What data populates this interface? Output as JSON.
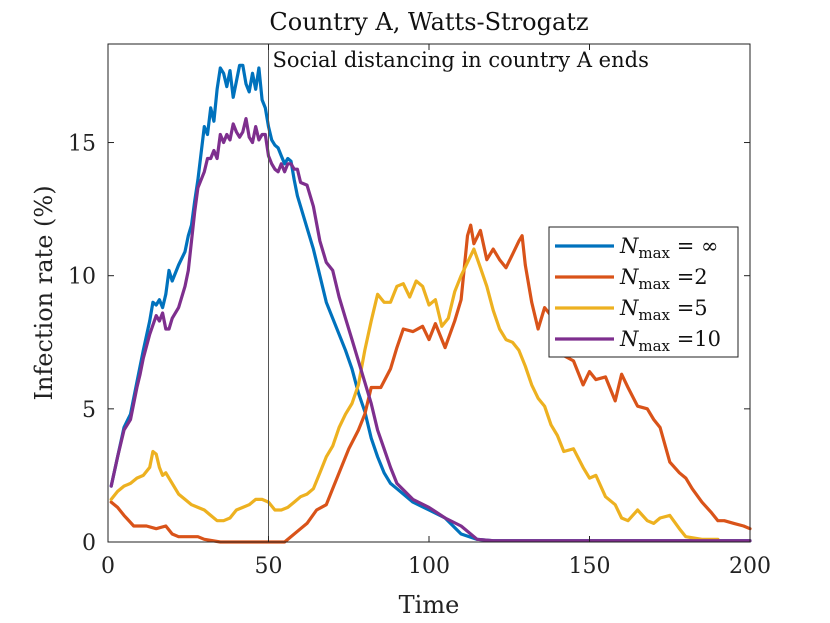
{
  "chart_data": {
    "type": "line",
    "title": "Country A, Watts-Strogatz",
    "xlabel": "Time",
    "ylabel": "Infection rate (%)",
    "xlim": [
      0,
      200
    ],
    "ylim": [
      0,
      18.7
    ],
    "xticks": [
      0,
      50,
      100,
      150,
      200
    ],
    "yticks": [
      0,
      5,
      10,
      15
    ],
    "grid": false,
    "legend_position": "right-middle",
    "annotation": {
      "x": 50,
      "text": "Social distancing in country A ends"
    },
    "series": [
      {
        "name": "N_max = ∞",
        "label_var": "N",
        "label_sub": "max",
        "label_val": " = ∞",
        "color": "#0072BD",
        "x": [
          1,
          3,
          5,
          7,
          9,
          10,
          11,
          13,
          14,
          15,
          16,
          17,
          18,
          19,
          20,
          22,
          24,
          25,
          26,
          27,
          28,
          29,
          30,
          31,
          32,
          33,
          34,
          35,
          36,
          37,
          38,
          39,
          40,
          41,
          42,
          43,
          44,
          45,
          46,
          47,
          48,
          49,
          50,
          51,
          52,
          53,
          54,
          55,
          56,
          57,
          58,
          59,
          60,
          62,
          64,
          66,
          68,
          70,
          72,
          74,
          76,
          78,
          80,
          82,
          84,
          86,
          88,
          90,
          95,
          100,
          105,
          110,
          115,
          120,
          125,
          130,
          140,
          150,
          160,
          170,
          180,
          190,
          200
        ],
        "y": [
          2.1,
          3.2,
          4.3,
          4.8,
          6.0,
          6.6,
          7.2,
          8.3,
          9.0,
          8.9,
          9.1,
          8.8,
          9.3,
          10.2,
          9.8,
          10.4,
          10.9,
          11.5,
          11.9,
          12.8,
          13.6,
          14.6,
          15.6,
          15.3,
          16.3,
          15.8,
          17.0,
          17.8,
          17.6,
          17.1,
          17.7,
          16.7,
          17.3,
          17.9,
          17.9,
          17.2,
          16.9,
          17.6,
          17.0,
          17.8,
          16.6,
          16.3,
          15.6,
          15.1,
          14.9,
          14.8,
          14.5,
          14.2,
          14.4,
          14.3,
          13.6,
          13.0,
          12.6,
          11.8,
          11.0,
          10.0,
          9.0,
          8.4,
          7.8,
          7.2,
          6.5,
          5.6,
          4.9,
          3.9,
          3.2,
          2.6,
          2.2,
          2.0,
          1.5,
          1.2,
          0.9,
          0.3,
          0.1,
          0.05,
          0.05,
          0.05,
          0.05,
          0.05,
          0.05,
          0.05,
          0.05,
          0.05,
          0.05
        ]
      },
      {
        "name": "N_max =2",
        "label_var": "N",
        "label_sub": "max",
        "label_val": " =2",
        "color": "#D95319",
        "x": [
          1,
          3,
          5,
          8,
          10,
          12,
          15,
          18,
          20,
          22,
          25,
          28,
          30,
          35,
          40,
          45,
          50,
          55,
          60,
          62,
          65,
          68,
          70,
          72,
          75,
          78,
          80,
          82,
          85,
          88,
          90,
          92,
          95,
          98,
          100,
          102,
          105,
          108,
          110,
          112,
          113,
          114,
          116,
          118,
          120,
          122,
          124,
          126,
          128,
          129,
          130,
          132,
          134,
          136,
          138,
          140,
          142,
          145,
          148,
          150,
          152,
          155,
          158,
          160,
          162,
          165,
          168,
          170,
          172,
          175,
          178,
          180,
          182,
          185,
          188,
          190,
          192,
          195,
          198,
          200
        ],
        "y": [
          1.5,
          1.3,
          1.0,
          0.6,
          0.6,
          0.6,
          0.5,
          0.6,
          0.3,
          0.2,
          0.2,
          0.2,
          0.1,
          0.0,
          0.0,
          0.0,
          0.0,
          0.0,
          0.5,
          0.7,
          1.2,
          1.4,
          2.0,
          2.6,
          3.5,
          4.2,
          4.8,
          5.8,
          5.8,
          6.5,
          7.3,
          8.0,
          7.9,
          8.1,
          7.6,
          8.2,
          7.3,
          8.3,
          9.1,
          11.5,
          11.9,
          11.2,
          11.7,
          10.6,
          11.0,
          10.6,
          10.3,
          10.8,
          11.3,
          11.5,
          10.4,
          9.0,
          8.0,
          8.8,
          8.5,
          7.9,
          7.0,
          6.8,
          5.9,
          6.4,
          6.1,
          6.2,
          5.3,
          6.3,
          5.8,
          5.1,
          5.0,
          4.6,
          4.3,
          3.0,
          2.6,
          2.4,
          2.0,
          1.5,
          1.1,
          0.8,
          0.8,
          0.7,
          0.6,
          0.5
        ]
      },
      {
        "name": "N_max =5",
        "label_var": "N",
        "label_sub": "max",
        "label_val": " =5",
        "color": "#EDB120",
        "x": [
          1,
          3,
          5,
          7,
          9,
          11,
          13,
          14,
          15,
          16,
          17,
          18,
          20,
          22,
          24,
          26,
          28,
          30,
          32,
          34,
          36,
          38,
          40,
          42,
          44,
          46,
          48,
          50,
          52,
          54,
          56,
          58,
          60,
          62,
          64,
          66,
          68,
          70,
          72,
          74,
          76,
          78,
          80,
          82,
          84,
          86,
          88,
          90,
          92,
          94,
          96,
          98,
          100,
          102,
          104,
          106,
          108,
          110,
          112,
          114,
          116,
          118,
          120,
          122,
          124,
          126,
          128,
          130,
          132,
          134,
          136,
          138,
          140,
          142,
          145,
          148,
          150,
          152,
          155,
          158,
          160,
          162,
          165,
          168,
          170,
          172,
          175,
          178,
          180,
          185,
          190
        ],
        "y": [
          1.6,
          1.9,
          2.1,
          2.2,
          2.4,
          2.5,
          2.8,
          3.4,
          3.3,
          2.8,
          2.5,
          2.6,
          2.2,
          1.8,
          1.6,
          1.4,
          1.3,
          1.2,
          1.0,
          0.8,
          0.8,
          0.9,
          1.2,
          1.3,
          1.4,
          1.6,
          1.6,
          1.5,
          1.2,
          1.2,
          1.3,
          1.5,
          1.7,
          1.8,
          2.0,
          2.6,
          3.2,
          3.6,
          4.3,
          4.8,
          5.2,
          5.9,
          7.2,
          8.3,
          9.3,
          9.0,
          9.0,
          9.6,
          9.7,
          9.2,
          9.8,
          9.6,
          8.9,
          9.1,
          8.1,
          8.4,
          9.4,
          10.0,
          10.5,
          11.0,
          10.3,
          9.6,
          8.7,
          8.0,
          7.6,
          7.5,
          7.2,
          6.6,
          5.9,
          5.4,
          5.1,
          4.4,
          4.0,
          3.4,
          3.5,
          2.8,
          2.4,
          2.5,
          1.7,
          1.4,
          0.9,
          0.8,
          1.2,
          0.8,
          0.7,
          0.9,
          1.0,
          0.5,
          0.2,
          0.1,
          0.1
        ]
      },
      {
        "name": "N_max =10",
        "label_var": "N",
        "label_sub": "max",
        "label_val": " =10",
        "color": "#7E2F8E",
        "x": [
          1,
          3,
          5,
          7,
          9,
          10,
          11,
          13,
          15,
          16,
          17,
          18,
          19,
          20,
          22,
          24,
          25,
          26,
          27,
          28,
          29,
          30,
          31,
          32,
          33,
          34,
          35,
          36,
          37,
          38,
          39,
          40,
          41,
          42,
          43,
          44,
          45,
          46,
          47,
          48,
          49,
          50,
          51,
          52,
          53,
          54,
          55,
          56,
          57,
          58,
          59,
          60,
          62,
          64,
          66,
          68,
          70,
          72,
          74,
          76,
          78,
          80,
          82,
          84,
          86,
          88,
          90,
          95,
          100,
          105,
          110,
          115,
          120,
          125,
          130,
          140,
          150,
          160,
          170,
          180,
          190,
          200
        ],
        "y": [
          2.1,
          3.2,
          4.2,
          4.6,
          5.8,
          6.3,
          6.9,
          7.8,
          8.5,
          8.3,
          8.6,
          8.0,
          8.0,
          8.4,
          8.8,
          9.6,
          10.2,
          11.3,
          12.4,
          13.3,
          13.6,
          13.9,
          14.4,
          14.4,
          14.7,
          14.4,
          15.3,
          15.0,
          15.3,
          15.1,
          15.7,
          15.4,
          15.2,
          15.4,
          15.9,
          15.2,
          15.0,
          15.6,
          15.1,
          15.3,
          15.3,
          14.5,
          14.2,
          14.0,
          13.9,
          14.2,
          13.9,
          14.2,
          14.2,
          14.0,
          14.0,
          13.5,
          13.4,
          12.6,
          11.3,
          10.5,
          10.2,
          9.2,
          8.4,
          7.6,
          6.8,
          6.0,
          5.2,
          4.2,
          3.5,
          2.8,
          2.2,
          1.6,
          1.3,
          0.9,
          0.6,
          0.1,
          0.05,
          0.05,
          0.05,
          0.05,
          0.05,
          0.05,
          0.05,
          0.05,
          0.05,
          0.05
        ]
      }
    ]
  }
}
